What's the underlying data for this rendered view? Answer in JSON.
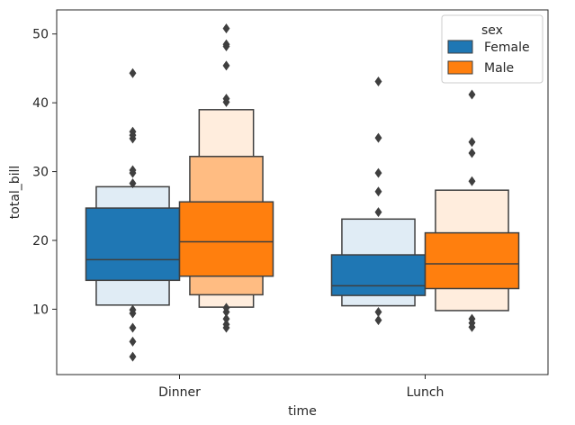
{
  "chart_data": {
    "type": "boxen",
    "xlabel": "time",
    "ylabel": "total_bill",
    "categories": [
      "Dinner",
      "Lunch"
    ],
    "ylim": [
      0.5,
      53.5
    ],
    "yticks": [
      10,
      20,
      30,
      40,
      50
    ],
    "legend": {
      "title": "sex",
      "placement": "top-right"
    },
    "colors": {
      "Female": "#1f77b4",
      "Male": "#ff7f0e"
    },
    "series": [
      {
        "name": "Female",
        "groups": [
          {
            "category": "Dinner",
            "median": 17.2,
            "levels": [
              {
                "low": 14.2,
                "high": 24.7
              },
              {
                "low": 10.6,
                "high": 27.8
              }
            ],
            "outliers": [
              3.1,
              5.3,
              7.3,
              9.4,
              9.9,
              28.3,
              29.8,
              30.2,
              34.8,
              35.3,
              35.8,
              44.3
            ]
          },
          {
            "category": "Lunch",
            "median": 13.4,
            "levels": [
              {
                "low": 12.0,
                "high": 17.9
              },
              {
                "low": 10.5,
                "high": 23.1
              }
            ],
            "outliers": [
              8.4,
              9.6,
              24.1,
              27.1,
              29.8,
              34.9,
              43.1
            ]
          }
        ]
      },
      {
        "name": "Male",
        "groups": [
          {
            "category": "Dinner",
            "median": 19.8,
            "levels": [
              {
                "low": 14.8,
                "high": 25.6
              },
              {
                "low": 12.1,
                "high": 32.2
              },
              {
                "low": 10.3,
                "high": 39.0
              }
            ],
            "outliers": [
              7.3,
              7.8,
              8.6,
              9.6,
              10.2,
              40.1,
              40.6,
              45.4,
              48.2,
              48.5,
              50.8
            ]
          },
          {
            "category": "Lunch",
            "median": 16.6,
            "levels": [
              {
                "low": 13.0,
                "high": 21.1
              },
              {
                "low": 9.8,
                "high": 27.3
              }
            ],
            "outliers": [
              7.4,
              8.0,
              8.6,
              28.6,
              32.7,
              34.3,
              41.2
            ]
          }
        ]
      }
    ]
  }
}
